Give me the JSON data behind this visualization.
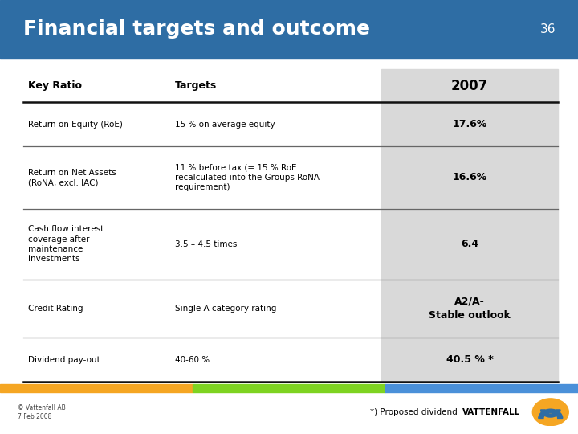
{
  "title": "Financial targets and outcome",
  "slide_number": "36",
  "header_bg_color": "#2E6DA4",
  "header_text_color": "#FFFFFF",
  "title_fontsize": 18,
  "col3_bg_color": "#D9D9D9",
  "columns": [
    "Key Ratio",
    "Targets",
    "2007"
  ],
  "rows": [
    {
      "key_ratio": "Return on Equity (RoE)",
      "targets": "15 % on average equity",
      "result": "17.6%",
      "result_bold": true
    },
    {
      "key_ratio": "Return on Net Assets\n(RoNA, excl. IAC)",
      "targets": "11 % before tax (= 15 % RoE\nrecalculated into the Groups RoNA\nrequirement)",
      "result": "16.6%",
      "result_bold": true
    },
    {
      "key_ratio": "Cash flow interest\ncoverage after\nmaintenance\ninvestments",
      "targets": "3.5 – 4.5 times",
      "result": "6.4",
      "result_bold": true
    },
    {
      "key_ratio": "Credit Rating",
      "targets": "Single A category rating",
      "result": "A2/A-\nStable outlook",
      "result_bold": true
    },
    {
      "key_ratio": "Dividend pay-out",
      "targets": "40-60 %",
      "result": "40.5 % *",
      "result_bold": true
    }
  ],
  "footer_left": "© Vattenfall AB\n7 Feb 2008",
  "footer_right": "*) Proposed dividend",
  "stripe_colors": [
    "#F5A623",
    "#7ED321",
    "#4A90D9"
  ],
  "divider_color": "#666666",
  "header_line_color": "#111111"
}
